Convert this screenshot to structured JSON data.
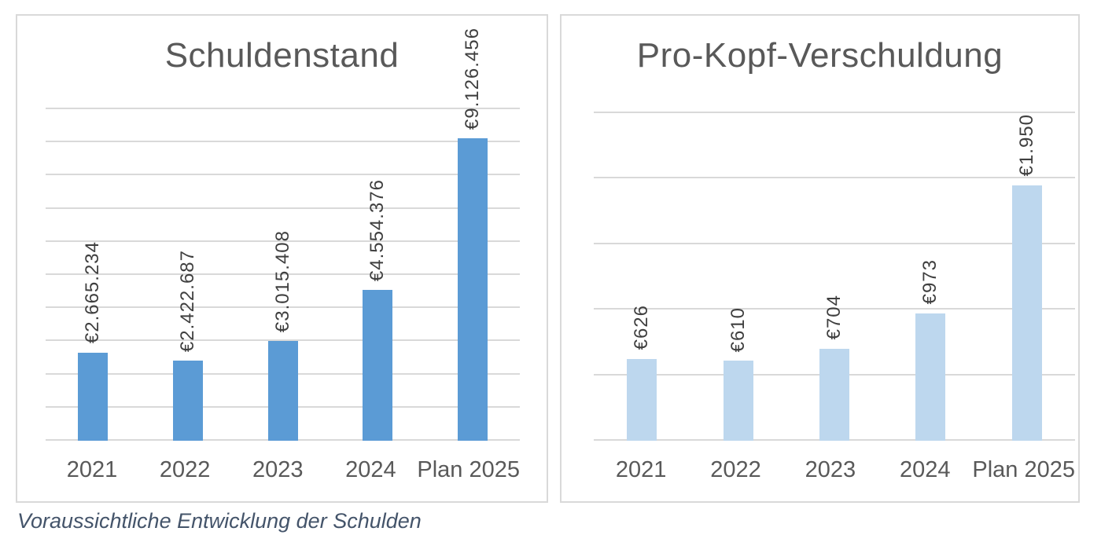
{
  "caption": {
    "text": "Voraussichtliche Entwicklung der Schulden"
  },
  "colors": {
    "bar_debt": "#5B9BD5",
    "bar_per_capita": "#BDD7EE",
    "gridline": "#D9D9D9",
    "panel_border": "#D9D9D9",
    "title_text": "#595959",
    "axis_text": "#595959",
    "data_label_text": "#3F3F3F",
    "caption_text": "#44546A"
  },
  "chart_data": [
    {
      "type": "bar",
      "title": "Schuldenstand",
      "categories": [
        "2021",
        "2022",
        "2023",
        "2024",
        "Plan 2025"
      ],
      "values": [
        2665234,
        2422687,
        3015408,
        4554376,
        9126456
      ],
      "data_labels": [
        "€2.665.234",
        "€2.422.687",
        "€3.015.408",
        "€4.554.376",
        "€9.126.456"
      ],
      "xlabel": "",
      "ylabel": "",
      "ylim": [
        0,
        10000000
      ],
      "gridline_step": 1000000,
      "grid": true,
      "legend": "none",
      "y_tick_labels": "none",
      "data_label_rotation_deg": 90,
      "bar_color": "#5B9BD5"
    },
    {
      "type": "bar",
      "title": "Pro-Kopf-Verschuldung",
      "categories": [
        "2021",
        "2022",
        "2023",
        "2024",
        "Plan 2025"
      ],
      "values": [
        626,
        610,
        704,
        973,
        1950
      ],
      "data_labels": [
        "€626",
        "€610",
        "€704",
        "€973",
        "€1.950"
      ],
      "xlabel": "",
      "ylabel": "",
      "ylim": [
        0,
        2500
      ],
      "gridline_step": 500,
      "grid": true,
      "legend": "none",
      "y_tick_labels": "none",
      "data_label_rotation_deg": 90,
      "bar_color": "#BDD7EE"
    }
  ]
}
